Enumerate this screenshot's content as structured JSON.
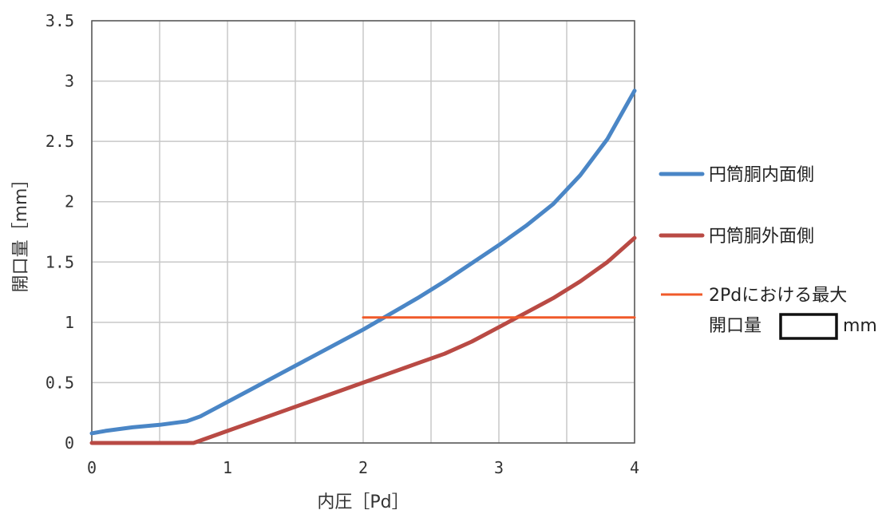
{
  "chart_data": {
    "type": "line",
    "xlabel": "内圧［Pd］",
    "ylabel": "開口量［mm］",
    "xlim": [
      0,
      4
    ],
    "ylim": [
      0,
      3.5
    ],
    "x_ticks": [
      "0",
      "1",
      "2",
      "3",
      "4"
    ],
    "y_ticks": [
      "0",
      "0.5",
      "1",
      "1.5",
      "2",
      "2.5",
      "3",
      "3.5"
    ],
    "grid": true,
    "legend_position": "right",
    "series": [
      {
        "name": "円筒胴内面側",
        "color": "#4a86c6",
        "x": [
          0,
          0.1,
          0.3,
          0.5,
          0.7,
          0.8,
          1.0,
          1.2,
          1.4,
          1.6,
          1.8,
          2.0,
          2.2,
          2.4,
          2.6,
          2.8,
          3.0,
          3.2,
          3.4,
          3.6,
          3.8,
          4.0
        ],
        "y": [
          0.08,
          0.1,
          0.13,
          0.15,
          0.18,
          0.22,
          0.34,
          0.46,
          0.58,
          0.7,
          0.82,
          0.94,
          1.07,
          1.2,
          1.34,
          1.49,
          1.64,
          1.8,
          1.98,
          2.22,
          2.52,
          2.92
        ]
      },
      {
        "name": "円筒胴外面側",
        "color": "#b94a44",
        "x": [
          0,
          0.5,
          0.75,
          0.8,
          1.0,
          1.2,
          1.4,
          1.6,
          1.8,
          2.0,
          2.2,
          2.4,
          2.6,
          2.8,
          3.0,
          3.2,
          3.4,
          3.6,
          3.8,
          4.0
        ],
        "y": [
          0,
          0,
          0,
          0.02,
          0.1,
          0.18,
          0.26,
          0.34,
          0.42,
          0.5,
          0.58,
          0.66,
          0.74,
          0.84,
          0.96,
          1.08,
          1.2,
          1.34,
          1.5,
          1.7
        ]
      },
      {
        "name": "2Pdにおける最大",
        "name_line2": "開口量",
        "unit": "mm",
        "color": "#f05a2a",
        "x": [
          2,
          4
        ],
        "y": [
          1.04,
          1.04
        ]
      }
    ]
  }
}
